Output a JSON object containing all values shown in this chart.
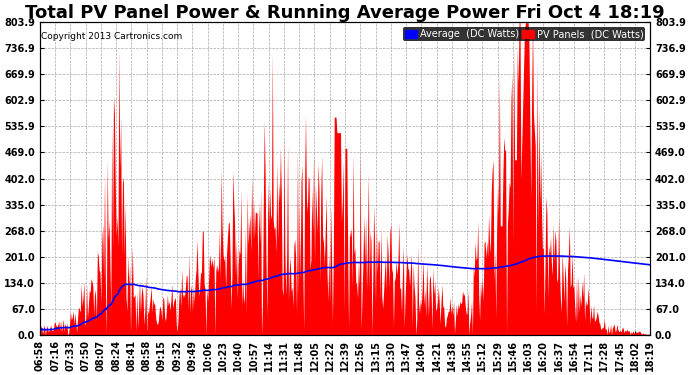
{
  "title": "Total PV Panel Power & Running Average Power Fri Oct 4 18:19",
  "copyright": "Copyright 2013 Cartronics.com",
  "legend_avg": "Average  (DC Watts)",
  "legend_pv": "PV Panels  (DC Watts)",
  "ylabel_values": [
    0.0,
    67.0,
    134.0,
    201.0,
    268.0,
    335.0,
    402.0,
    469.0,
    535.9,
    602.9,
    669.9,
    736.9,
    803.9
  ],
  "ymax": 803.9,
  "ymin": 0.0,
  "bg_color": "#ffffff",
  "plot_bg_color": "#ffffff",
  "grid_color": "#aaaaaa",
  "pv_color": "#ff0000",
  "avg_color": "#0000ff",
  "title_fontsize": 13,
  "tick_fontsize": 7,
  "x_ticks": [
    "06:58",
    "07:16",
    "07:33",
    "07:50",
    "08:07",
    "08:24",
    "08:41",
    "08:58",
    "09:15",
    "09:32",
    "09:49",
    "10:06",
    "10:23",
    "10:40",
    "10:57",
    "11:14",
    "11:31",
    "11:48",
    "12:05",
    "12:22",
    "12:39",
    "12:56",
    "13:15",
    "13:30",
    "13:47",
    "14:04",
    "14:21",
    "14:38",
    "14:55",
    "15:12",
    "15:29",
    "15:46",
    "16:03",
    "16:20",
    "16:37",
    "16:54",
    "17:11",
    "17:28",
    "17:45",
    "18:02",
    "18:19"
  ]
}
